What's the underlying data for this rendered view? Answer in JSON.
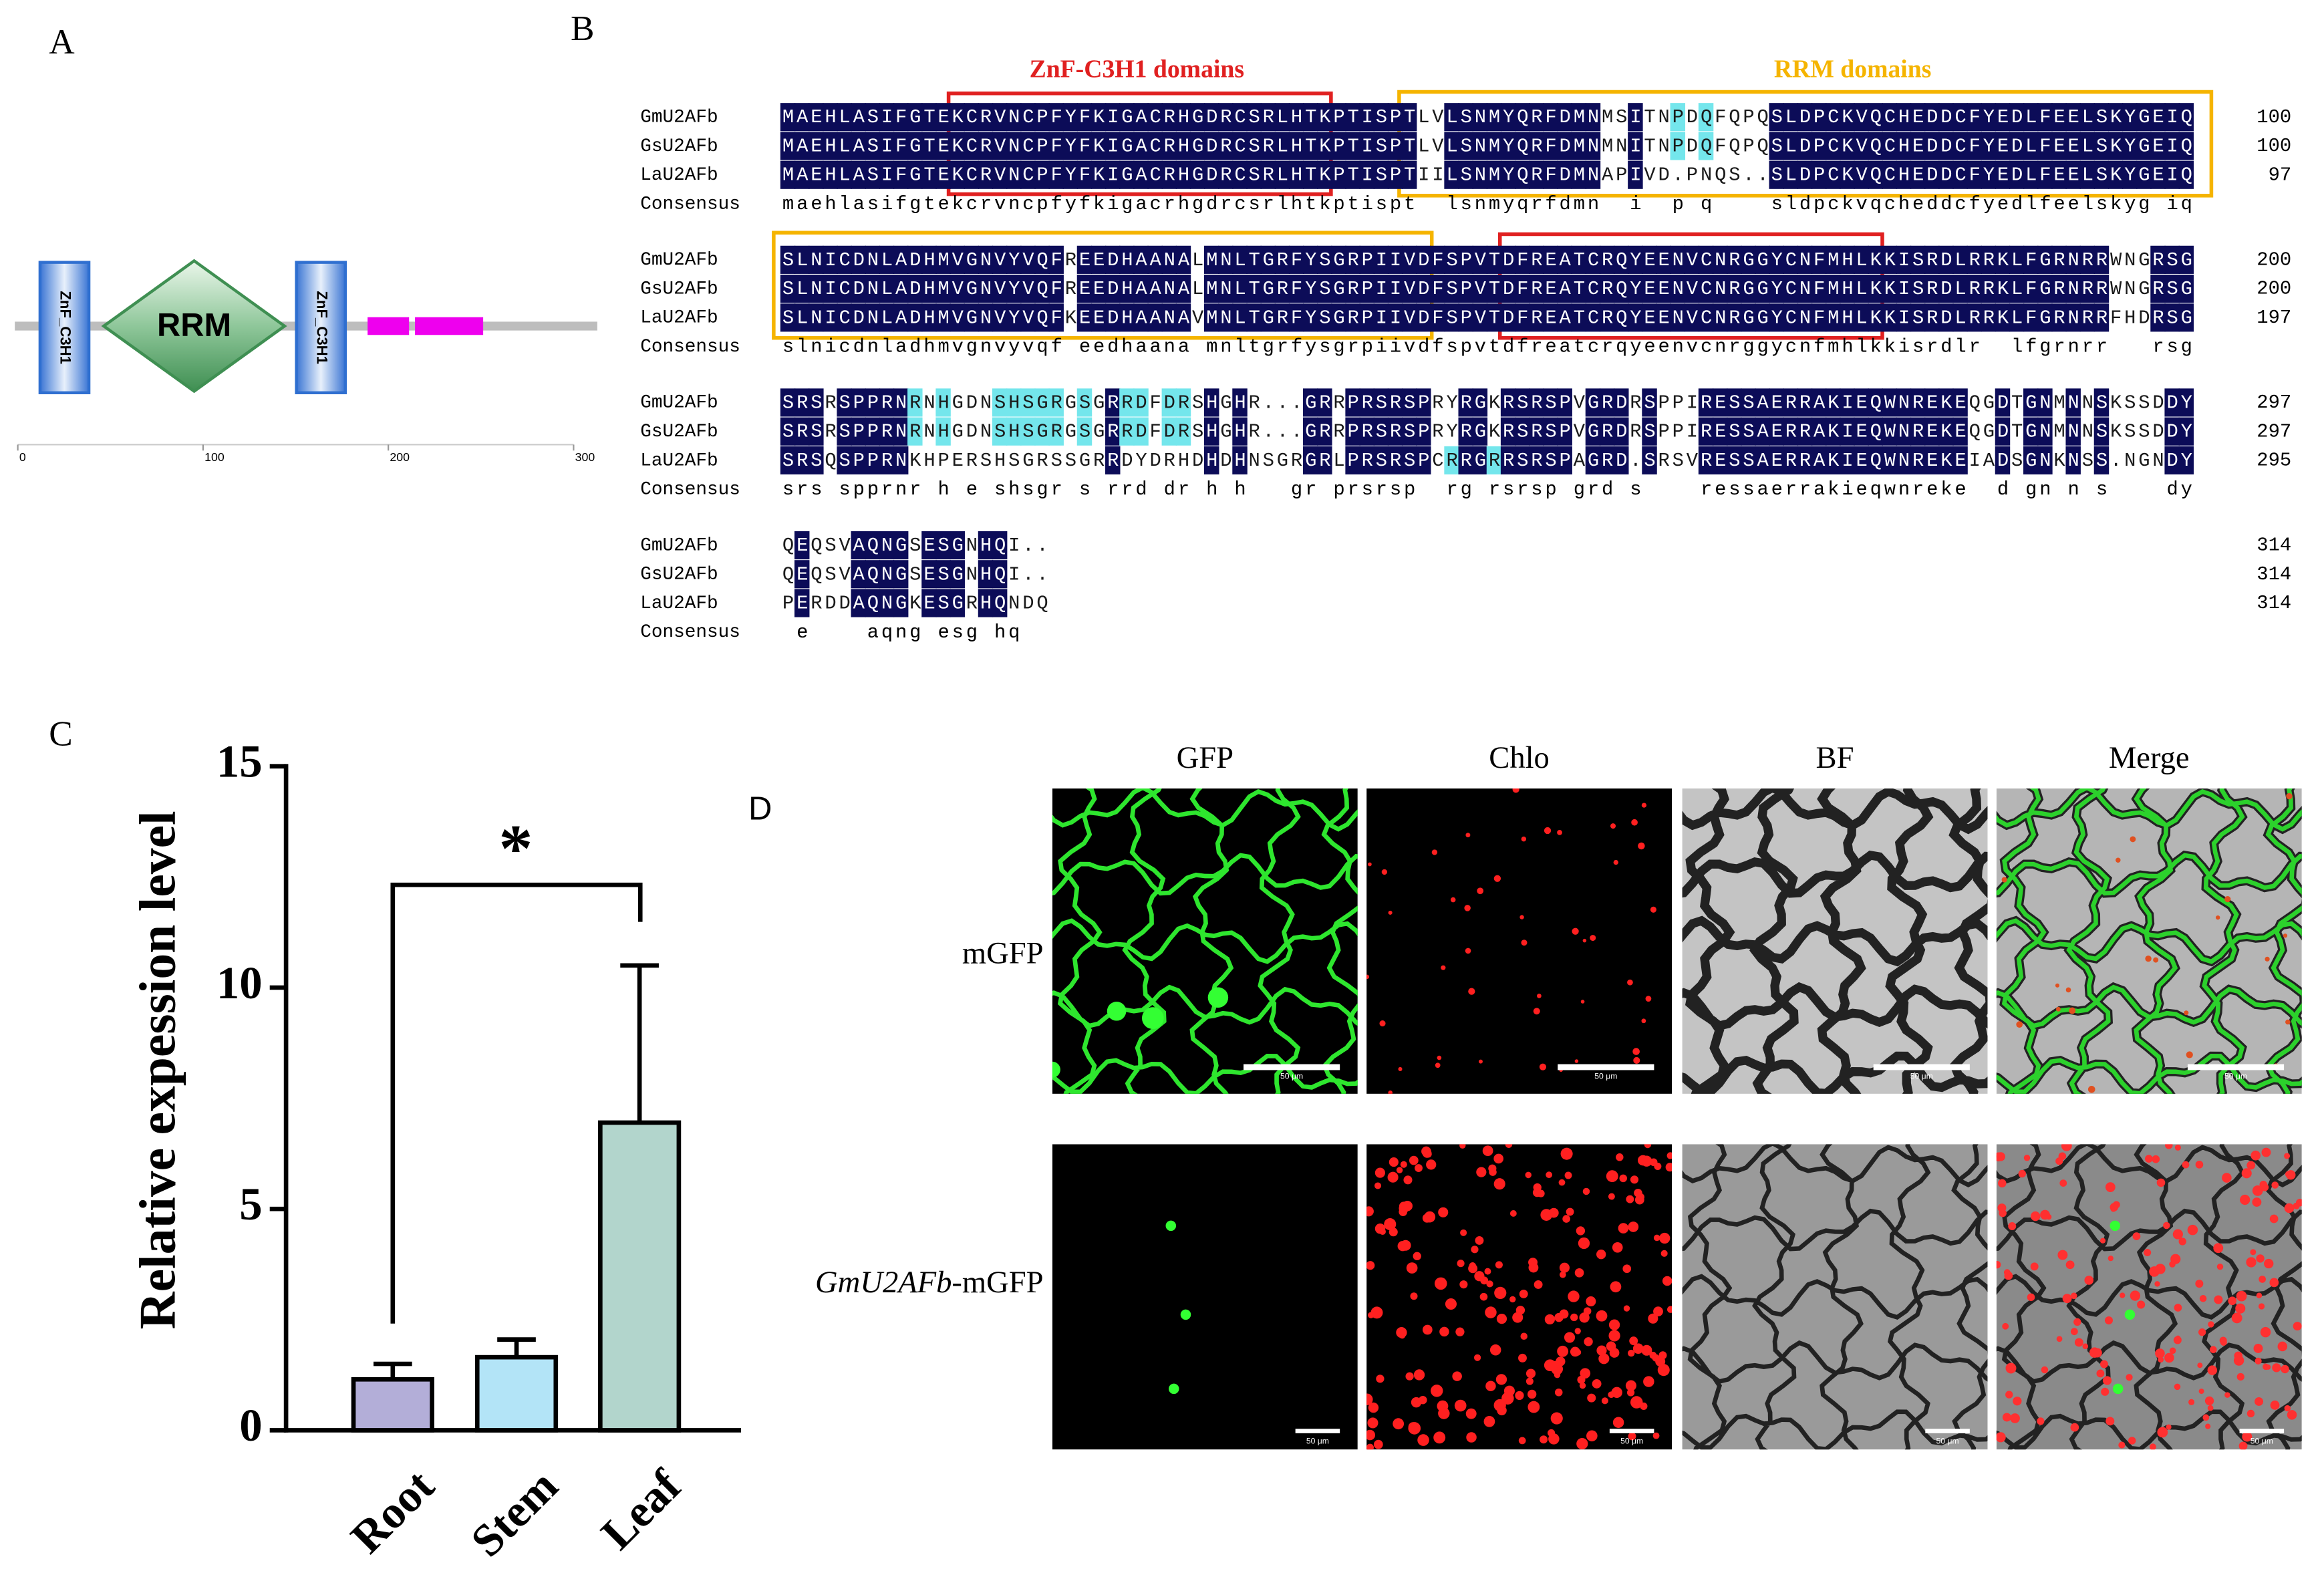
{
  "panel_labels": [
    "A",
    "B",
    "C",
    "D"
  ],
  "panel_a": {
    "domains": [
      "ZnF_C3H1",
      "RRM",
      "ZnF_C3H1"
    ],
    "axis_ticks": [
      0,
      100,
      200,
      300
    ]
  },
  "panel_b": {
    "box_labels": [
      "ZnF-C3H1 domains",
      "RRM domains"
    ],
    "blocks": [
      {
        "rows": [
          {
            "name": "GmU2AFb",
            "seq": "MAEHLASIFGTEKCRVNCPFYFKIGACRHGDRCSRLHTKPTISPTLVLSNMYQRFDMNMSITNPDQFQPQSLDPCKVQCHEDDCFYEDLFEELSKYGEIQ",
            "end": "100"
          },
          {
            "name": "GsU2AFb",
            "seq": "MAEHLASIFGTEKCRVNCPFYFKIGACRHGDRCSRLHTKPTISPTLVLSNMYQRFDMNMNITNPDQFQPQSLDPCKVQCHEDDCFYEDLFEELSKYGEIQ",
            "end": "100"
          },
          {
            "name": "LaU2AFb",
            "seq": "MAEHLASIFGTEKCRVNCPFYFKIGACRHGDRCSRLHTKPTISPTIILSNMYQRFDMNAPIVD.PNQS..SLDPCKVQCHEDDCFYEDLFEELSKYGEIQ",
            "end": "97"
          }
        ],
        "consensus_label": "Consensus",
        "consensus": "maehlasifgtekcrvncpfyfkigacrhgdrcsrlhtkptispt  lsnmyqrfdmn  i  p q    sldpckvqcheddcfyedlfeelskyg iq"
      },
      {
        "rows": [
          {
            "name": "GmU2AFb",
            "seq": "SLNICDNLADHMVGNVYVQFREEDHAANALMNLTGRFYSGRPIIVDFSPVTDFREATCRQYEENVCNRGGYCNFMHLKKISRDLRRKLFGRNRRWNGRSG",
            "end": "200"
          },
          {
            "name": "GsU2AFb",
            "seq": "SLNICDNLADHMVGNVYVQFREEDHAANALMNLTGRFYSGRPIIVDFSPVTDFREATCRQYEENVCNRGGYCNFMHLKKISRDLRRKLFGRNRRWNGRSG",
            "end": "200"
          },
          {
            "name": "LaU2AFb",
            "seq": "SLNICDNLADHMVGNVYVQFKEEDHAANAVMNLTGRFYSGRPIIVDFSPVTDFREATCRQYEENVCNRGGYCNFMHLKKISRDLRRKLFGRNRRFHDRSG",
            "end": "197"
          }
        ],
        "consensus_label": "Consensus",
        "consensus": "slnicdnladhmvgnvyvqf eedhaana mnltgrfysgrpiivdfspvtdfreatcrqyeenvcnrggycnfmhlkkisrdlr  lfgrnrr   rsg"
      },
      {
        "rows": [
          {
            "name": "GmU2AFb",
            "seq": "SRSRSPPRNRNHGDNSHSGRGSGRRDFDRSHGHR...GRRPRSRSPRYRGKRSRSPVGRDRSPPIRESSAERRAKIEQWNREKEQGDTGNMNNSKSSDDY",
            "end": "297"
          },
          {
            "name": "GsU2AFb",
            "seq": "SRSRSPPRNRNHGDNSHSGRGSGRRDFDRSHGHR...GRRPRSRSPRYRGKRSRSPVGRDRSPPIRESSAERRAKIEQWNREKEQGDTGNMNNSKSSDDY",
            "end": "297"
          },
          {
            "name": "LaU2AFb",
            "seq": "SRSQSPPRNKHPERSHSGRSSGRRDYDRHDHDHNSGRGRLPRSRSPCRRGRRSRSPAGRD.SRSVRESSAERRAKIEQWNREKEIADSGNKNSS.NGNDY",
            "end": "295"
          }
        ],
        "consensus_label": "Consensus",
        "consensus": "srs spprnr h e shsgr s rrd dr h h   gr prsrsp  rg rsrsp grd s    ressaerrakieqwnreke  d gn n s    dy"
      },
      {
        "rows": [
          {
            "name": "GmU2AFb",
            "seq": "QEQSVAQNGSESGNHQI..",
            "end": "314"
          },
          {
            "name": "GsU2AFb",
            "seq": "QEQSVAQNGSESGNHQI..",
            "end": "314"
          },
          {
            "name": "LaU2AFb",
            "seq": "PERDDAQNGKESGRHQNDQ",
            "end": "314"
          }
        ],
        "consensus_label": "Consensus",
        "consensus": " e    aqng esg hq"
      }
    ]
  },
  "chart_data": {
    "type": "bar",
    "ylabel": "Relative expession level",
    "categories": [
      "Root",
      "Stem",
      "Leaf"
    ],
    "values": [
      1.15,
      1.65,
      6.95
    ],
    "errors": [
      0.35,
      0.4,
      3.55
    ],
    "colors": [
      "#b3aed8",
      "#b3e4f7",
      "#b2d5cc"
    ],
    "ylim": [
      0,
      15
    ],
    "yticks": [
      0,
      5,
      10,
      15
    ],
    "annotation": "*"
  },
  "panel_d": {
    "columns": [
      "GFP",
      "Chlo",
      "BF",
      "Merge"
    ],
    "rows": [
      {
        "label": "mGFP"
      },
      {
        "italic": "GmU2AFb",
        "label": "-mGFP"
      }
    ],
    "scale_bar": "50 μm"
  }
}
